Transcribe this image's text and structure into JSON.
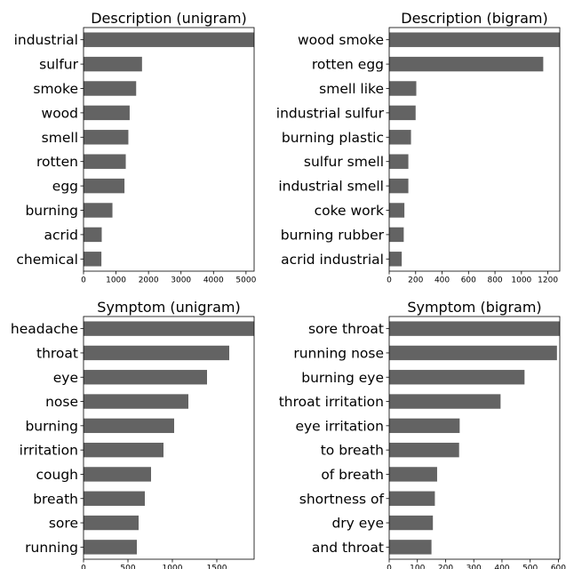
{
  "chart_data": [
    {
      "type": "bar",
      "orientation": "horizontal",
      "title": "Description (unigram)",
      "categories": [
        "industrial",
        "sulfur",
        "smoke",
        "wood",
        "smell",
        "rotten",
        "egg",
        "burning",
        "acrid",
        "chemical"
      ],
      "values": [
        5250,
        1800,
        1620,
        1420,
        1380,
        1300,
        1260,
        890,
        560,
        550
      ],
      "xlim": [
        0,
        5250
      ],
      "xticks": [
        0,
        1000,
        2000,
        3000,
        4000,
        5000
      ]
    },
    {
      "type": "bar",
      "orientation": "horizontal",
      "title": "Description (bigram)",
      "categories": [
        "wood smoke",
        "rotten egg",
        "smell like",
        "industrial sulfur",
        "burning plastic",
        "sulfur smell",
        "industrial smell",
        "coke work",
        "burning rubber",
        "acrid industrial"
      ],
      "values": [
        1290,
        1165,
        205,
        200,
        165,
        145,
        145,
        115,
        110,
        95
      ],
      "xlim": [
        0,
        1290
      ],
      "xticks": [
        0,
        200,
        400,
        600,
        800,
        1000,
        1200
      ]
    },
    {
      "type": "bar",
      "orientation": "horizontal",
      "title": "Symptom (unigram)",
      "categories": [
        "headache",
        "throat",
        "eye",
        "nose",
        "burning",
        "irritation",
        "cough",
        "breath",
        "sore",
        "running"
      ],
      "values": [
        1920,
        1640,
        1390,
        1180,
        1020,
        900,
        760,
        690,
        620,
        600
      ],
      "xlim": [
        0,
        1920
      ],
      "xticks": [
        0,
        500,
        1000,
        1500
      ]
    },
    {
      "type": "bar",
      "orientation": "horizontal",
      "title": "Symptom (bigram)",
      "categories": [
        "sore throat",
        "running nose",
        "burning eye",
        "throat irritation",
        "eye irritation",
        "to breath",
        "of breath",
        "shortness of",
        "dry eye",
        "and throat"
      ],
      "values": [
        605,
        595,
        480,
        395,
        250,
        248,
        170,
        162,
        155,
        150
      ],
      "xlim": [
        0,
        605
      ],
      "xticks": [
        0,
        100,
        200,
        300,
        400,
        500,
        600
      ]
    }
  ]
}
